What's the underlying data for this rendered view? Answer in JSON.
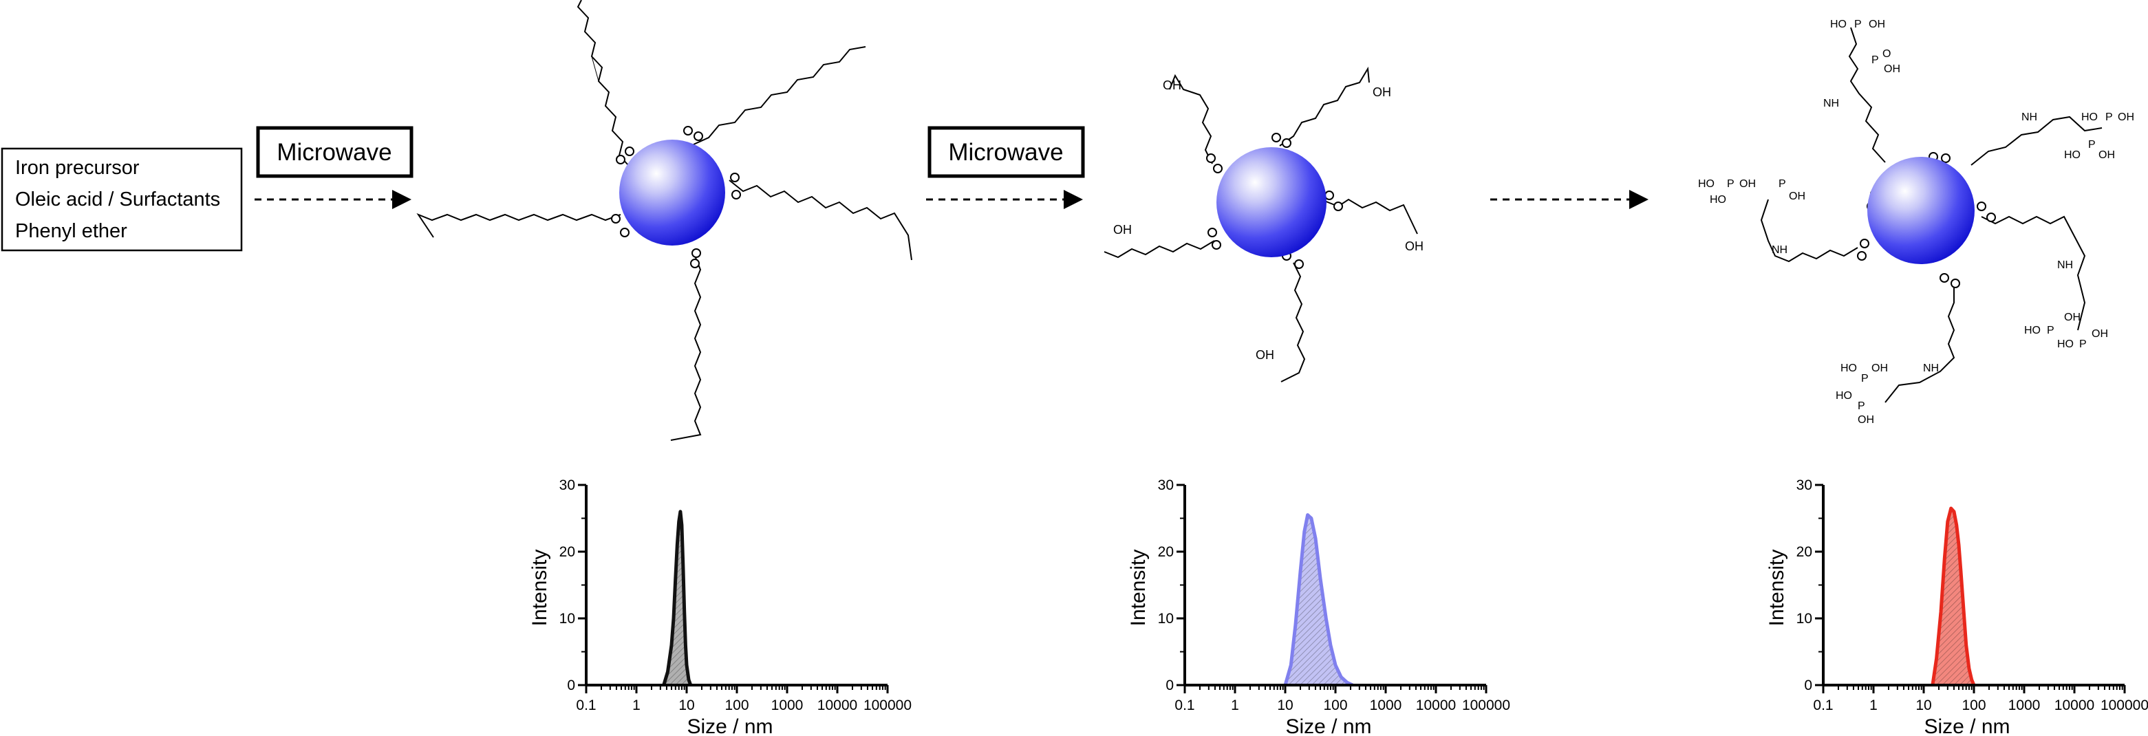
{
  "reagents": {
    "lines": [
      "Iron precursor",
      "Oleic acid / Surfactants",
      "Phenyl ether"
    ]
  },
  "steps": [
    {
      "label": "Microwave"
    },
    {
      "label": "Microwave"
    },
    {
      "label": ""
    }
  ],
  "colors": {
    "nanoparticle_core": "#1e1ee0",
    "nanoparticle_highlight": "#ffffff",
    "stage1_dist": "#111111",
    "stage1_fill": "#b0b0b0",
    "stage2_dist": "#8080ee",
    "stage2_fill": "#c2c2f4",
    "stage3_dist": "#e8281c",
    "stage3_fill": "#f3877e"
  },
  "molecules": {
    "carboxylic_acid": "OH",
    "amide": "NH",
    "phosphonic_labels": [
      "HO",
      "OH",
      "P",
      "O"
    ]
  },
  "chart_data": [
    {
      "type": "area",
      "title": "",
      "xlabel": "Size / nm",
      "ylabel": "Intensity",
      "xscale": "log",
      "xlim": [
        0.1,
        100000
      ],
      "ylim": [
        0,
        30
      ],
      "x_ticks": [
        "0.1",
        "1",
        "10",
        "100",
        "1000",
        "10000",
        "100000"
      ],
      "y_ticks": [
        "0",
        "10",
        "20",
        "30"
      ],
      "series": [
        {
          "x": [
            3.5,
            4.2,
            5,
            5.5,
            6,
            6.5,
            7,
            7.5,
            8,
            8.5,
            9,
            9.5,
            10,
            11,
            12
          ],
          "values": [
            0,
            2,
            6,
            10,
            16,
            21,
            24.5,
            26,
            24,
            18,
            11,
            6,
            3,
            0.8,
            0
          ]
        }
      ]
    },
    {
      "type": "area",
      "title": "",
      "xlabel": "Size / nm",
      "ylabel": "Intensity",
      "xscale": "log",
      "xlim": [
        0.1,
        100000
      ],
      "ylim": [
        0,
        30
      ],
      "x_ticks": [
        "0.1",
        "1",
        "10",
        "100",
        "1000",
        "10000",
        "100000"
      ],
      "y_ticks": [
        "0",
        "10",
        "20",
        "30"
      ],
      "series": [
        {
          "x": [
            10,
            13,
            16,
            20,
            24,
            28,
            33,
            40,
            50,
            65,
            80,
            100,
            130,
            170,
            220
          ],
          "values": [
            0,
            3,
            9,
            17,
            23,
            25.5,
            25,
            22,
            16,
            10,
            6,
            3,
            1.2,
            0.4,
            0
          ]
        }
      ]
    },
    {
      "type": "area",
      "title": "",
      "xlabel": "Size / nm",
      "ylabel": "Intensity",
      "xscale": "log",
      "xlim": [
        0.1,
        100000
      ],
      "ylim": [
        0,
        30
      ],
      "x_ticks": [
        "0.1",
        "1",
        "10",
        "100",
        "1000",
        "10000",
        "100000"
      ],
      "y_ticks": [
        "0",
        "10",
        "20",
        "30"
      ],
      "series": [
        {
          "x": [
            15,
            18,
            22,
            26,
            30,
            35,
            40,
            45,
            50,
            55,
            60,
            70,
            80,
            90,
            100
          ],
          "values": [
            0,
            4,
            11,
            19,
            24.5,
            26.5,
            26,
            24,
            21,
            17,
            13,
            6,
            2.5,
            0.8,
            0
          ]
        }
      ]
    }
  ]
}
